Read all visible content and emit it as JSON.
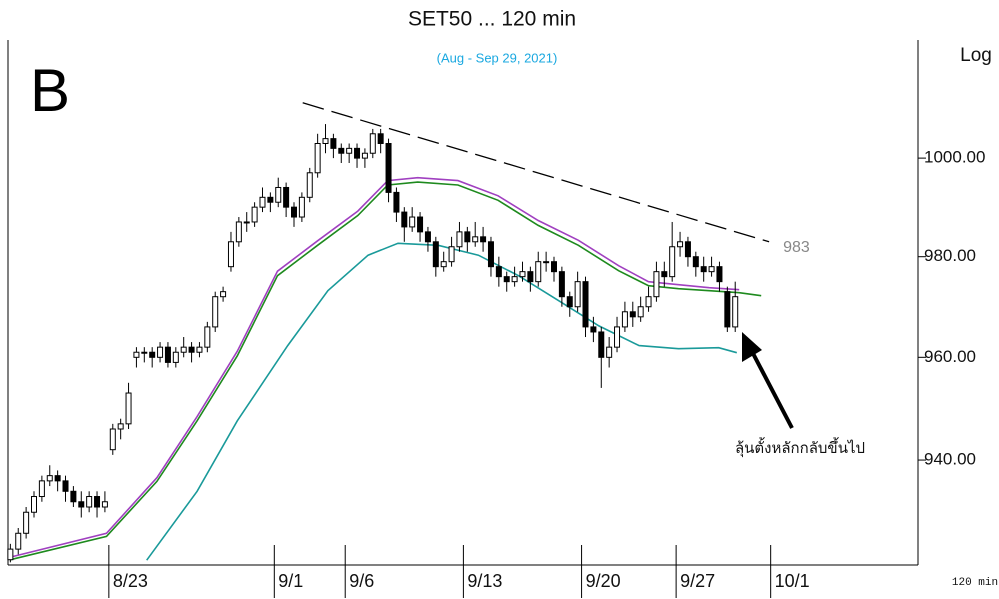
{
  "chart_data": {
    "type": "candlestick",
    "title": "SET50 ... 120 min",
    "subtitle": "(Aug - Sep 29, 2021)",
    "panel_letter": "B",
    "scale_label": "Log",
    "interval_label": "120 min",
    "yscale": "log",
    "xlim": [
      -0.3,
      115.2
    ],
    "ylim": [
      920,
      1024.5
    ],
    "yticks": [
      {
        "value": 940,
        "label": "940.00"
      },
      {
        "value": 960,
        "label": "960.00"
      },
      {
        "value": 980,
        "label": "980.00"
      },
      {
        "value": 1000,
        "label": "1000.00"
      }
    ],
    "xticks": [
      {
        "value": 12.5,
        "label": "8/23"
      },
      {
        "value": 33.5,
        "label": "9/1"
      },
      {
        "value": 42.5,
        "label": "9/6"
      },
      {
        "value": 57.5,
        "label": "9/13"
      },
      {
        "value": 72.5,
        "label": "9/20"
      },
      {
        "value": 84.5,
        "label": "9/27"
      },
      {
        "value": 96.5,
        "label": "10/1"
      }
    ],
    "up_color": "#ffffff",
    "down_color": "#000000",
    "edge_color": "#000000",
    "ohlc": [
      [
        921,
        924,
        920.5,
        923
      ],
      [
        923,
        927,
        922,
        926
      ],
      [
        926,
        931,
        925,
        930
      ],
      [
        930,
        934,
        929,
        933
      ],
      [
        933,
        937,
        932,
        936
      ],
      [
        936,
        939,
        935,
        937
      ],
      [
        937,
        938,
        934,
        936
      ],
      [
        936,
        937,
        932,
        934
      ],
      [
        934,
        935,
        931,
        932
      ],
      [
        932,
        934,
        929,
        931
      ],
      [
        931,
        934,
        930,
        933
      ],
      [
        933,
        934,
        929,
        931
      ],
      [
        931,
        934,
        930,
        932
      ],
      [
        942,
        947,
        941,
        946
      ],
      [
        946,
        948,
        944,
        947
      ],
      [
        947,
        955,
        946,
        953
      ],
      [
        960,
        962,
        958,
        961
      ],
      [
        961,
        962,
        959,
        961
      ],
      [
        961,
        962,
        958,
        960
      ],
      [
        960,
        963,
        959,
        962
      ],
      [
        962,
        963,
        958,
        959
      ],
      [
        959,
        962,
        958,
        961
      ],
      [
        961,
        964,
        960,
        962
      ],
      [
        962,
        963,
        959,
        961
      ],
      [
        961,
        963,
        960,
        962
      ],
      [
        962,
        967,
        961,
        966
      ],
      [
        966,
        973,
        965,
        972
      ],
      [
        972,
        974,
        971,
        973
      ],
      [
        978,
        985,
        977,
        983
      ],
      [
        983,
        988,
        982,
        987
      ],
      [
        987,
        989,
        985,
        987
      ],
      [
        987,
        991,
        986,
        990
      ],
      [
        990,
        994,
        989,
        992
      ],
      [
        992,
        993,
        989,
        991
      ],
      [
        991,
        996,
        990,
        994
      ],
      [
        994,
        995,
        988,
        990
      ],
      [
        990,
        991,
        986,
        988
      ],
      [
        988,
        993,
        987,
        992
      ],
      [
        992,
        998,
        991,
        997
      ],
      [
        997,
        1005,
        996,
        1003
      ],
      [
        1003,
        1007,
        1001,
        1004
      ],
      [
        1004,
        1005,
        1000,
        1002
      ],
      [
        1002,
        1003,
        999,
        1001
      ],
      [
        1001,
        1003,
        999,
        1002
      ],
      [
        1002,
        1003,
        998,
        1000
      ],
      [
        1000,
        1002,
        998,
        1001
      ],
      [
        1001,
        1006,
        1000,
        1005
      ],
      [
        1005,
        1006,
        1001,
        1003
      ],
      [
        1003,
        1004,
        991,
        993
      ],
      [
        993,
        994,
        987,
        989
      ],
      [
        989,
        990,
        983,
        986
      ],
      [
        986,
        990,
        985,
        988
      ],
      [
        988,
        989,
        983,
        985
      ],
      [
        985,
        986,
        981,
        983
      ],
      [
        983,
        984,
        976,
        978
      ],
      [
        978,
        981,
        977,
        979
      ],
      [
        979,
        984,
        978,
        982
      ],
      [
        982,
        987,
        981,
        985
      ],
      [
        985,
        986,
        981,
        983
      ],
      [
        983,
        987,
        982,
        984
      ],
      [
        984,
        986,
        981,
        983
      ],
      [
        983,
        984,
        976,
        978
      ],
      [
        978,
        980,
        974,
        976
      ],
      [
        976,
        977,
        973,
        975
      ],
      [
        975,
        978,
        974,
        976
      ],
      [
        976,
        979,
        975,
        977
      ],
      [
        977,
        978,
        973,
        975
      ],
      [
        975,
        981,
        974,
        979
      ],
      [
        979,
        981,
        977,
        979
      ],
      [
        979,
        980,
        975,
        977
      ],
      [
        977,
        978,
        970,
        972
      ],
      [
        972,
        973,
        968,
        970
      ],
      [
        970,
        977,
        969,
        975
      ],
      [
        975,
        976,
        964,
        966
      ],
      [
        966,
        968,
        963,
        965
      ],
      [
        965,
        966,
        954,
        960
      ],
      [
        960,
        964,
        958,
        962
      ],
      [
        962,
        968,
        961,
        966
      ],
      [
        966,
        971,
        965,
        969
      ],
      [
        969,
        971,
        966,
        968
      ],
      [
        968,
        972,
        967,
        970
      ],
      [
        970,
        974,
        969,
        972
      ],
      [
        972,
        979,
        971,
        977
      ],
      [
        977,
        979,
        974,
        976
      ],
      [
        976,
        987,
        975,
        982
      ],
      [
        982,
        985,
        980,
        983
      ],
      [
        983,
        984,
        978,
        980
      ],
      [
        980,
        981,
        976,
        978
      ],
      [
        978,
        980,
        975,
        977
      ],
      [
        977,
        980,
        976,
        978
      ],
      [
        978,
        979,
        973,
        975
      ],
      [
        973,
        974,
        965,
        966
      ],
      [
        966,
        975,
        965,
        972
      ]
    ],
    "series": [
      {
        "color": "#a040c0",
        "x": [
          0,
          12.2,
          18.6,
          23.7,
          28.8,
          33.9,
          39,
          44.1,
          47.9,
          51.7,
          56.8,
          61.9,
          67,
          72.1,
          77.2,
          81,
          84.8,
          88.7,
          92.5
        ],
        "values": [
          921.5,
          926,
          936.6,
          948.4,
          961.2,
          977.1,
          983.2,
          989.2,
          995.4,
          996,
          995.4,
          992.3,
          987.3,
          983.3,
          978.2,
          975,
          974.4,
          973.8,
          973.4
        ]
      },
      {
        "color": "#1e8a1e",
        "x": [
          0,
          12.2,
          18.6,
          23.7,
          28.8,
          33.9,
          39,
          44.1,
          47.9,
          51.7,
          56.8,
          61.9,
          67,
          72.1,
          77.2,
          81,
          84.8,
          88.7,
          92.5,
          95.3
        ],
        "values": [
          921,
          925.4,
          935.9,
          947.6,
          960.3,
          976.2,
          982.3,
          988.3,
          994.5,
          995.1,
          994.5,
          991.4,
          986.3,
          982.3,
          977.2,
          974.2,
          973.6,
          973.2,
          972.8,
          972.2
        ]
      },
      {
        "color": "#1a9a9a",
        "x": [
          17.3,
          23.7,
          28.8,
          35.2,
          40.3,
          45.4,
          49.2,
          54.3,
          59.4,
          64.5,
          69.6,
          74.7,
          79.8,
          84.8,
          89.9,
          92.2
        ],
        "values": [
          920.9,
          934,
          947.6,
          962.3,
          973.2,
          980.3,
          982.7,
          982.3,
          980.3,
          976.2,
          971.2,
          966.2,
          962.3,
          961.7,
          961.9,
          960.9
        ]
      }
    ],
    "trendline": {
      "color": "#000000",
      "x": [
        37.1,
        96.3
      ],
      "values": [
        1011.4,
        983
      ],
      "label": "983"
    },
    "note": "ลุ้นตั้งหลักกลับขึ้นไป"
  }
}
